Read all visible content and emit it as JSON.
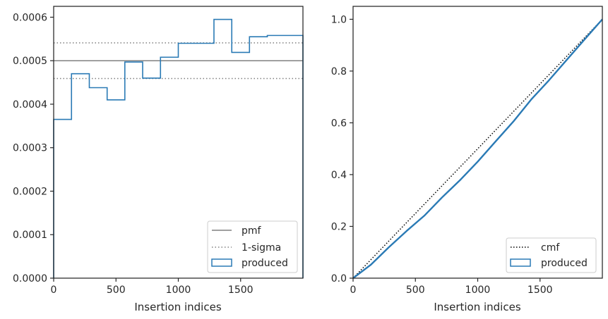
{
  "chart_data": [
    {
      "type": "line",
      "xlabel": "Insertion indices",
      "ylabel": "",
      "xlim": [
        0,
        2000
      ],
      "ylim": [
        0,
        0.000625
      ],
      "xticks": [
        0,
        500,
        1000,
        1500
      ],
      "xtick_labels": [
        "0",
        "500",
        "1000",
        "1500"
      ],
      "yticks": [
        0,
        0.0001,
        0.0002,
        0.0003,
        0.0004,
        0.0005,
        0.0006
      ],
      "ytick_labels": [
        "0.0000",
        "0.0001",
        "0.0002",
        "0.0003",
        "0.0004",
        "0.0005",
        "0.0006"
      ],
      "legend_position": "lower-right",
      "pmf": {
        "name": "pmf",
        "value": 0.0005,
        "color": "#808080"
      },
      "sigma": {
        "name": "1-sigma",
        "lower": 0.000459,
        "upper": 0.000541,
        "color": "#808080"
      },
      "histogram": {
        "name": "produced",
        "color": "#2a7ab5",
        "bin_edges": [
          0,
          143,
          286,
          429,
          571,
          714,
          857,
          1000,
          1143,
          1286,
          1429,
          1571,
          1714,
          1857,
          2000
        ],
        "values": [
          0.000365,
          0.00047,
          0.000438,
          0.00041,
          0.000497,
          0.00046,
          0.000508,
          0.00054,
          0.00054,
          0.000595,
          0.000519,
          0.000555,
          0.000558,
          0.000558
        ]
      }
    },
    {
      "type": "line",
      "xlabel": "Insertion indices",
      "ylabel": "",
      "xlim": [
        0,
        2000
      ],
      "ylim": [
        0,
        1.05
      ],
      "xticks": [
        0,
        500,
        1000,
        1500
      ],
      "xtick_labels": [
        "0",
        "500",
        "1000",
        "1500"
      ],
      "yticks": [
        0,
        0.2,
        0.4,
        0.6,
        0.8,
        1.0
      ],
      "ytick_labels": [
        "0.0",
        "0.2",
        "0.4",
        "0.6",
        "0.8",
        "1.0"
      ],
      "legend_position": "lower-right",
      "cmf": {
        "name": "cmf",
        "x": [
          0,
          2000
        ],
        "y": [
          0,
          1.0
        ],
        "color": "#000000"
      },
      "produced": {
        "name": "produced",
        "color": "#2a7ab5",
        "x": [
          0,
          143,
          286,
          429,
          571,
          714,
          857,
          1000,
          1143,
          1286,
          1429,
          1571,
          1714,
          1857,
          2000
        ],
        "y": [
          0,
          0.052,
          0.119,
          0.182,
          0.241,
          0.312,
          0.378,
          0.45,
          0.528,
          0.605,
          0.69,
          0.764,
          0.843,
          0.922,
          1.0
        ]
      }
    }
  ]
}
